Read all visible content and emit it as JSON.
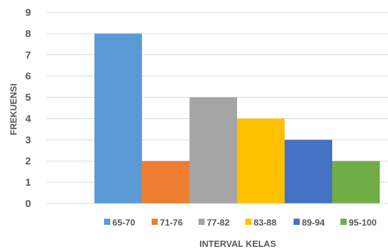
{
  "chart_data": {
    "type": "bar",
    "title": "",
    "xlabel": "INTERVAL KELAS",
    "ylabel": "FREKUENSI",
    "ylim": [
      0,
      9
    ],
    "yticks": [
      0,
      1,
      2,
      3,
      4,
      5,
      6,
      7,
      8,
      9
    ],
    "grid": true,
    "legend_position": "bottom",
    "categories": [
      ""
    ],
    "series": [
      {
        "name": "65-70",
        "values": [
          8
        ],
        "color": "#5B9BD5"
      },
      {
        "name": "71-76",
        "values": [
          2
        ],
        "color": "#ED7D31"
      },
      {
        "name": "77-82",
        "values": [
          5
        ],
        "color": "#A5A5A5"
      },
      {
        "name": "83-88",
        "values": [
          4
        ],
        "color": "#FFC000"
      },
      {
        "name": "89-94",
        "values": [
          3
        ],
        "color": "#4472C4"
      },
      {
        "name": "95-100",
        "values": [
          2
        ],
        "color": "#70AD47"
      }
    ]
  }
}
